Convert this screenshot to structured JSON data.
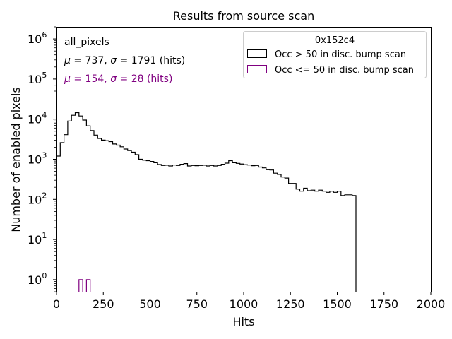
{
  "chart_data": {
    "type": "histogram",
    "title": "Results from source scan",
    "xlabel": "Hits",
    "ylabel": "Number of enabled pixels",
    "xlim": [
      0,
      2000
    ],
    "ylim": [
      0.5,
      2000000
    ],
    "yscale": "log",
    "grid": false,
    "x_ticks": [
      0,
      250,
      500,
      750,
      1000,
      1250,
      1500,
      1750,
      2000
    ],
    "x_tick_labels": [
      "0",
      "250",
      "500",
      "750",
      "1000",
      "1250",
      "1500",
      "1750",
      "2000"
    ],
    "y_ticks": [
      1,
      10,
      100,
      1000,
      10000,
      100000,
      1000000
    ],
    "y_tick_labels": [
      {
        "base": "10",
        "exp": "0"
      },
      {
        "base": "10",
        "exp": "1"
      },
      {
        "base": "10",
        "exp": "2"
      },
      {
        "base": "10",
        "exp": "3"
      },
      {
        "base": "10",
        "exp": "4"
      },
      {
        "base": "10",
        "exp": "5"
      },
      {
        "base": "10",
        "exp": "6"
      }
    ],
    "annotations": {
      "name": "all_pixels",
      "stats1": {
        "mu": "737",
        "sigma": "1791",
        "unit": "(hits)",
        "color": "#000000"
      },
      "stats2": {
        "mu": "154",
        "sigma": "28",
        "unit": "(hits)",
        "color": "#800080"
      }
    },
    "legend": {
      "title": "0x152c4",
      "position": "top-right",
      "entries": [
        "Occ > 50 in disc. bump scan",
        "Occ <= 50 in disc. bump scan"
      ]
    },
    "series": [
      {
        "name": "Occ > 50 in disc. bump scan",
        "color": "#000000",
        "bin_width": 20,
        "x_start": 0,
        "values": [
          1200,
          2600,
          4100,
          9000,
          12500,
          14500,
          12000,
          9500,
          6800,
          5200,
          4000,
          3300,
          3000,
          2900,
          2750,
          2400,
          2250,
          2050,
          1800,
          1650,
          1500,
          1300,
          1000,
          950,
          920,
          880,
          820,
          740,
          700,
          710,
          680,
          720,
          700,
          750,
          780,
          680,
          700,
          690,
          700,
          710,
          680,
          700,
          680,
          700,
          750,
          800,
          920,
          820,
          790,
          760,
          730,
          720,
          690,
          700,
          640,
          610,
          550,
          540,
          450,
          420,
          360,
          340,
          250,
          250,
          180,
          160,
          190,
          165,
          170,
          160,
          170,
          160,
          150,
          160,
          150,
          160,
          125,
          130,
          130,
          125
        ]
      },
      {
        "name": "Occ <= 50 in disc. bump scan",
        "color": "#800080",
        "bins": [
          {
            "x0": 120,
            "x1": 140,
            "value": 1
          },
          {
            "x0": 160,
            "x1": 180,
            "value": 1
          }
        ]
      }
    ]
  }
}
